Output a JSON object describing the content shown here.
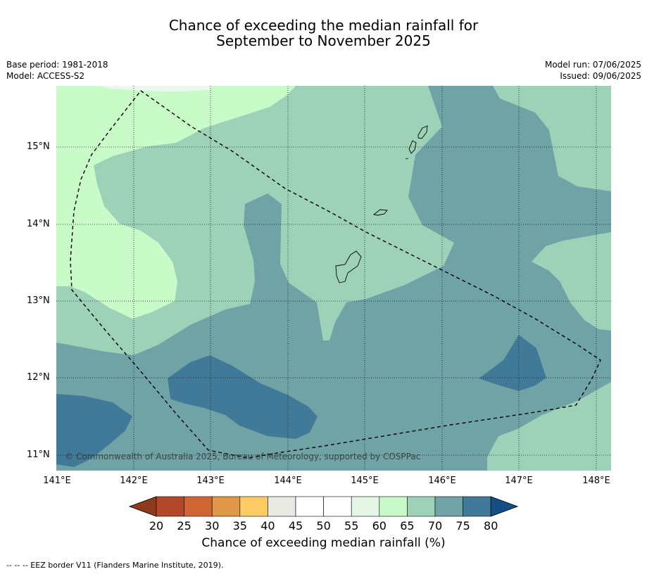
{
  "header": {
    "title_line1": "Chance of exceeding the median rainfall for",
    "title_line2": "September to November 2025"
  },
  "info_left": {
    "base_period": "Base period: 1981-2018",
    "model": "Model: ACCESS-S2"
  },
  "info_right": {
    "model_run": "Model run: 07/06/2025",
    "issued": "Issued: 09/06/2025"
  },
  "map": {
    "lat_labels": [
      "15°N",
      "14°N",
      "13°N",
      "12°N",
      "11°N"
    ],
    "lon_labels": [
      "141°E",
      "142°E",
      "143°E",
      "144°E",
      "145°E",
      "146°E",
      "147°E",
      "148°E"
    ],
    "copyright": "© Commonwealth of Australia 2025, Bureau of Meteorology, supported by COSPPac",
    "category_colors": {
      "50_60": "#c8fbc8",
      "60_65": "#c8f9c8",
      "65_70": "#9dd2b8",
      "70_75": "#6fa3a6",
      "75_80": "#417a98"
    }
  },
  "colorbar": {
    "ticks": [
      "20",
      "25",
      "30",
      "35",
      "40",
      "45",
      "50",
      "55",
      "60",
      "65",
      "70",
      "75",
      "80"
    ],
    "under_color": "#8e3a1f",
    "over_color": "#154d85",
    "colors": [
      "#b3472a",
      "#cf6634",
      "#e09748",
      "#fccb64",
      "#eaeae5",
      "#ffffff",
      "#ffffff",
      "#e6f6e6",
      "#c8f9c8",
      "#9dd2b8",
      "#6fa3a6",
      "#417a98"
    ],
    "label": "Chance of exceeding median rainfall (%)"
  },
  "footer": {
    "legend_text": "--  --  -- EEZ border V11 (Flanders Marine Institute, 2019)."
  }
}
